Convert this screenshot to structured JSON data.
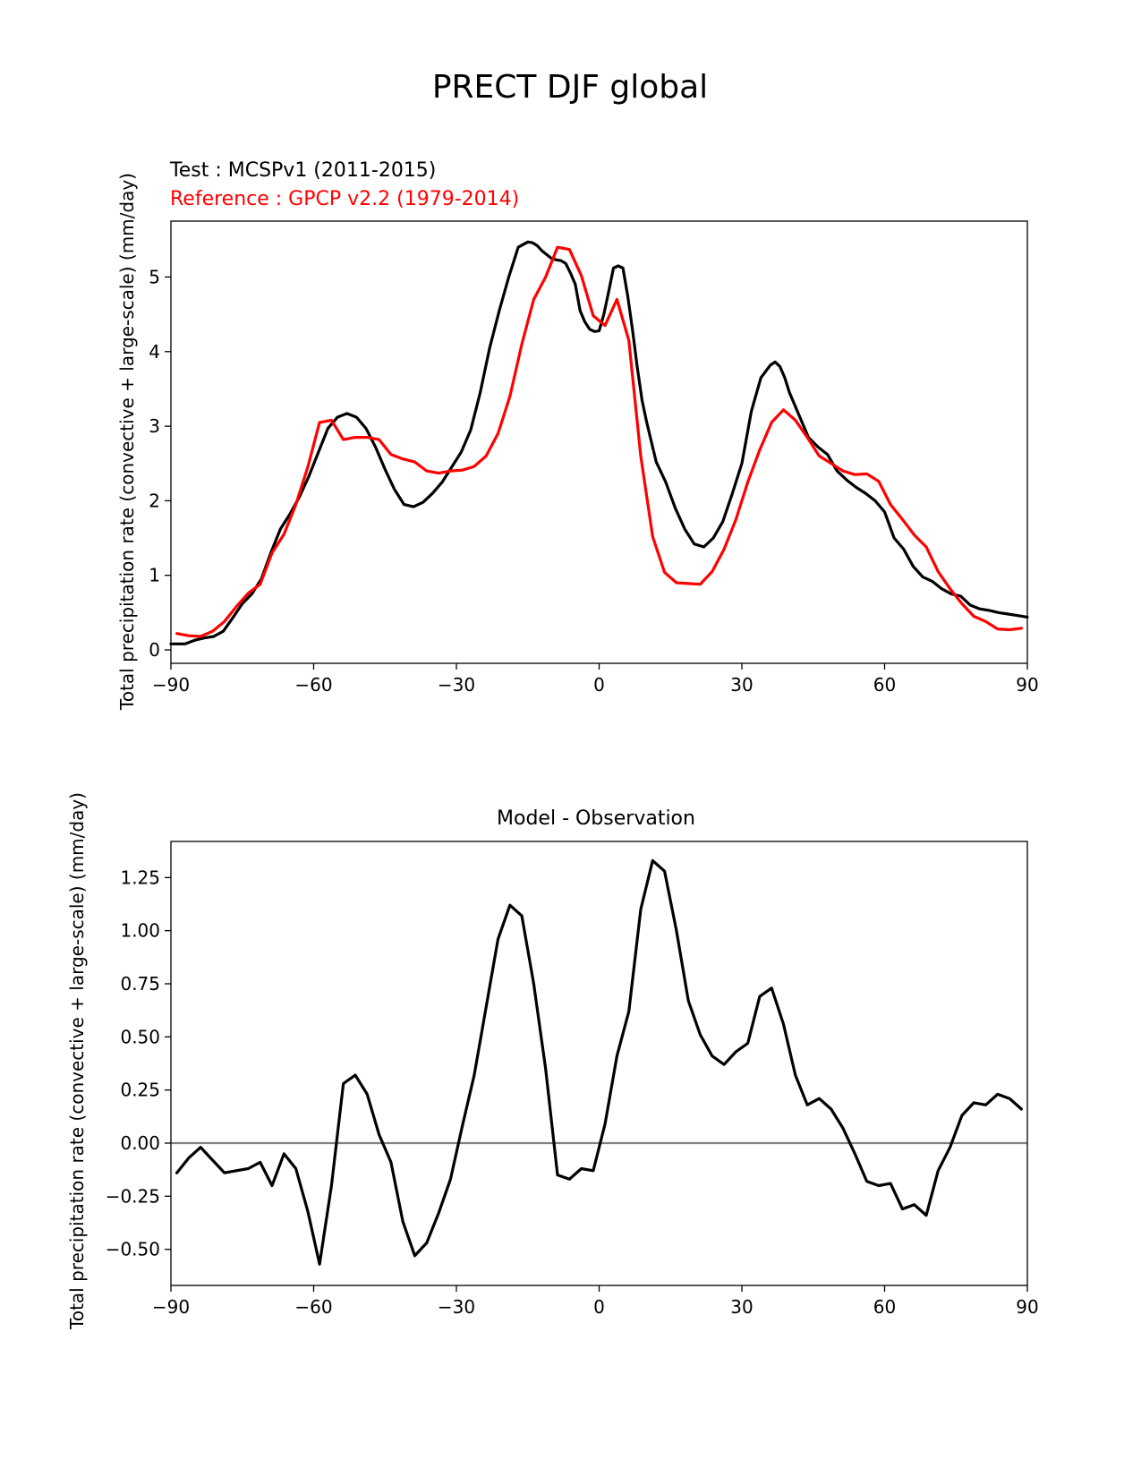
{
  "figure": {
    "title": "PRECT DJF global"
  },
  "chart_data": [
    {
      "type": "line",
      "title_left": "Test : MCSPv1 (2011-2015)",
      "title_left2": "Reference : GPCP v2.2 (1979-2014)",
      "xlabel": "",
      "ylabel": "Total precipitation rate (convective + large-scale) (mm/day)",
      "xlim": [
        -90,
        90
      ],
      "ylim": [
        -0.18,
        5.75
      ],
      "xticks": [
        -90,
        -60,
        -30,
        0,
        30,
        60,
        90
      ],
      "xtick_labels": [
        "−90",
        "−60",
        "−30",
        "0",
        "30",
        "60",
        "90"
      ],
      "yticks": [
        0,
        1,
        2,
        3,
        4,
        5
      ],
      "ytick_labels": [
        "0",
        "1",
        "2",
        "3",
        "4",
        "5"
      ],
      "series": [
        {
          "name": "Test : MCSPv1 (2011-2015)",
          "color": "#000000",
          "x": [
            -90,
            -87,
            -85,
            -83,
            -81,
            -79,
            -77,
            -75,
            -73,
            -71,
            -69,
            -67,
            -65,
            -63,
            -61,
            -59,
            -57,
            -55,
            -53,
            -51,
            -49,
            -47,
            -45,
            -43,
            -41,
            -39,
            -37,
            -35,
            -33,
            -31,
            -29,
            -27,
            -25,
            -23,
            -21,
            -19,
            -17,
            -15,
            -14,
            -13,
            -12,
            -11,
            -10,
            -9,
            -8,
            -7,
            -6,
            -5,
            -4,
            -3,
            -2,
            -1,
            0,
            1,
            2,
            3,
            4,
            5,
            6,
            7,
            8,
            9,
            10,
            12,
            14,
            16,
            18,
            20,
            22,
            24,
            26,
            28,
            30,
            32,
            34,
            36,
            37,
            38,
            39,
            40,
            42,
            44,
            46,
            48,
            50,
            52,
            54,
            56,
            58,
            60,
            62,
            64,
            66,
            68,
            70,
            72,
            74,
            76,
            78,
            80,
            82,
            84,
            86,
            88,
            90
          ],
          "values": [
            0.08,
            0.08,
            0.13,
            0.16,
            0.18,
            0.25,
            0.43,
            0.62,
            0.75,
            0.95,
            1.3,
            1.62,
            1.82,
            2.05,
            2.33,
            2.65,
            2.97,
            3.12,
            3.17,
            3.12,
            2.97,
            2.72,
            2.42,
            2.15,
            1.95,
            1.92,
            1.98,
            2.1,
            2.25,
            2.45,
            2.65,
            2.95,
            3.45,
            4.05,
            4.55,
            5.0,
            5.4,
            5.47,
            5.46,
            5.42,
            5.35,
            5.3,
            5.25,
            5.23,
            5.22,
            5.18,
            5.05,
            4.9,
            4.55,
            4.4,
            4.3,
            4.27,
            4.28,
            4.5,
            4.8,
            5.12,
            5.15,
            5.12,
            4.75,
            4.3,
            3.8,
            3.35,
            3.05,
            2.52,
            2.25,
            1.9,
            1.62,
            1.42,
            1.38,
            1.5,
            1.72,
            2.1,
            2.5,
            3.2,
            3.65,
            3.82,
            3.86,
            3.8,
            3.65,
            3.45,
            3.15,
            2.85,
            2.72,
            2.62,
            2.4,
            2.28,
            2.18,
            2.1,
            2.0,
            1.85,
            1.5,
            1.35,
            1.12,
            0.98,
            0.92,
            0.82,
            0.75,
            0.72,
            0.6,
            0.55,
            0.53,
            0.5,
            0.48,
            0.46,
            0.44
          ]
        },
        {
          "name": "Reference : GPCP v2.2 (1979-2014)",
          "color": "#ff0000",
          "x": [
            -88.75,
            -86.25,
            -83.75,
            -81.25,
            -78.75,
            -76.25,
            -73.75,
            -71.25,
            -68.75,
            -66.25,
            -63.75,
            -61.25,
            -58.75,
            -56.25,
            -53.75,
            -51.25,
            -48.75,
            -46.25,
            -43.75,
            -41.25,
            -38.75,
            -36.25,
            -33.75,
            -31.25,
            -28.75,
            -26.25,
            -23.75,
            -21.25,
            -18.75,
            -16.25,
            -13.75,
            -11.25,
            -8.75,
            -6.25,
            -3.75,
            -1.25,
            1.25,
            3.75,
            6.25,
            8.75,
            11.25,
            13.75,
            16.25,
            18.75,
            21.25,
            23.75,
            26.25,
            28.75,
            31.25,
            33.75,
            36.25,
            38.75,
            41.25,
            43.75,
            46.25,
            48.75,
            51.25,
            53.75,
            56.25,
            58.75,
            61.25,
            63.75,
            66.25,
            68.75,
            71.25,
            73.75,
            76.25,
            78.75,
            81.25,
            83.75,
            86.25,
            88.75
          ],
          "values": [
            0.22,
            0.19,
            0.18,
            0.25,
            0.38,
            0.58,
            0.76,
            0.88,
            1.3,
            1.55,
            1.95,
            2.45,
            3.05,
            3.08,
            2.82,
            2.85,
            2.85,
            2.82,
            2.62,
            2.56,
            2.52,
            2.4,
            2.37,
            2.4,
            2.41,
            2.46,
            2.6,
            2.9,
            3.4,
            4.1,
            4.7,
            5.0,
            5.4,
            5.37,
            5.02,
            4.48,
            4.35,
            4.7,
            4.15,
            2.6,
            1.52,
            1.04,
            0.9,
            0.89,
            0.88,
            1.05,
            1.35,
            1.75,
            2.25,
            2.68,
            3.05,
            3.22,
            3.08,
            2.85,
            2.6,
            2.5,
            2.4,
            2.35,
            2.36,
            2.26,
            1.95,
            1.75,
            1.54,
            1.38,
            1.05,
            0.82,
            0.62,
            0.45,
            0.38,
            0.28,
            0.27,
            0.29
          ]
        }
      ]
    },
    {
      "type": "line",
      "title": "Model - Observation",
      "xlabel": "",
      "ylabel": "Total precipitation rate (convective + large-scale) (mm/day)",
      "xlim": [
        -90,
        90
      ],
      "ylim": [
        -0.67,
        1.42
      ],
      "xticks": [
        -90,
        -60,
        -30,
        0,
        30,
        60,
        90
      ],
      "xtick_labels": [
        "−90",
        "−60",
        "−30",
        "0",
        "30",
        "60",
        "90"
      ],
      "yticks": [
        -0.5,
        -0.25,
        0.0,
        0.25,
        0.5,
        0.75,
        1.0,
        1.25
      ],
      "ytick_labels": [
        "−0.50",
        "−0.25",
        "0.00",
        "0.25",
        "0.50",
        "0.75",
        "1.00",
        "1.25"
      ],
      "zero_line_color": "#808080",
      "series": [
        {
          "color": "#000000",
          "x": [
            -88.75,
            -86.25,
            -83.75,
            -81.25,
            -78.75,
            -76.25,
            -73.75,
            -71.25,
            -68.75,
            -66.25,
            -63.75,
            -61.25,
            -58.75,
            -56.25,
            -53.75,
            -51.25,
            -48.75,
            -46.25,
            -43.75,
            -41.25,
            -38.75,
            -36.25,
            -33.75,
            -31.25,
            -28.75,
            -26.25,
            -23.75,
            -21.25,
            -18.75,
            -16.25,
            -13.75,
            -11.25,
            -8.75,
            -6.25,
            -3.75,
            -1.25,
            1.25,
            3.75,
            6.25,
            8.75,
            11.25,
            13.75,
            16.25,
            18.75,
            21.25,
            23.75,
            26.25,
            28.75,
            31.25,
            33.75,
            36.25,
            38.75,
            41.25,
            43.75,
            46.25,
            48.75,
            51.25,
            53.75,
            56.25,
            58.75,
            61.25,
            63.75,
            66.25,
            68.75,
            71.25,
            73.75,
            76.25,
            78.75,
            81.25,
            83.75,
            86.25,
            88.75
          ],
          "values": [
            -0.14,
            -0.07,
            -0.02,
            -0.08,
            -0.14,
            -0.13,
            -0.12,
            -0.09,
            -0.2,
            -0.05,
            -0.12,
            -0.32,
            -0.57,
            -0.2,
            0.28,
            0.32,
            0.23,
            0.04,
            -0.09,
            -0.37,
            -0.53,
            -0.47,
            -0.33,
            -0.17,
            0.08,
            0.32,
            0.64,
            0.96,
            1.12,
            1.07,
            0.75,
            0.35,
            -0.15,
            -0.17,
            -0.12,
            -0.13,
            0.09,
            0.41,
            0.62,
            1.1,
            1.33,
            1.28,
            1.0,
            0.67,
            0.51,
            0.41,
            0.37,
            0.43,
            0.47,
            0.69,
            0.73,
            0.56,
            0.32,
            0.18,
            0.21,
            0.16,
            0.07,
            -0.05,
            -0.18,
            -0.2,
            -0.19,
            -0.31,
            -0.29,
            -0.34,
            -0.13,
            -0.02,
            0.13,
            0.19,
            0.18,
            0.23,
            0.21,
            0.16
          ]
        }
      ]
    }
  ]
}
